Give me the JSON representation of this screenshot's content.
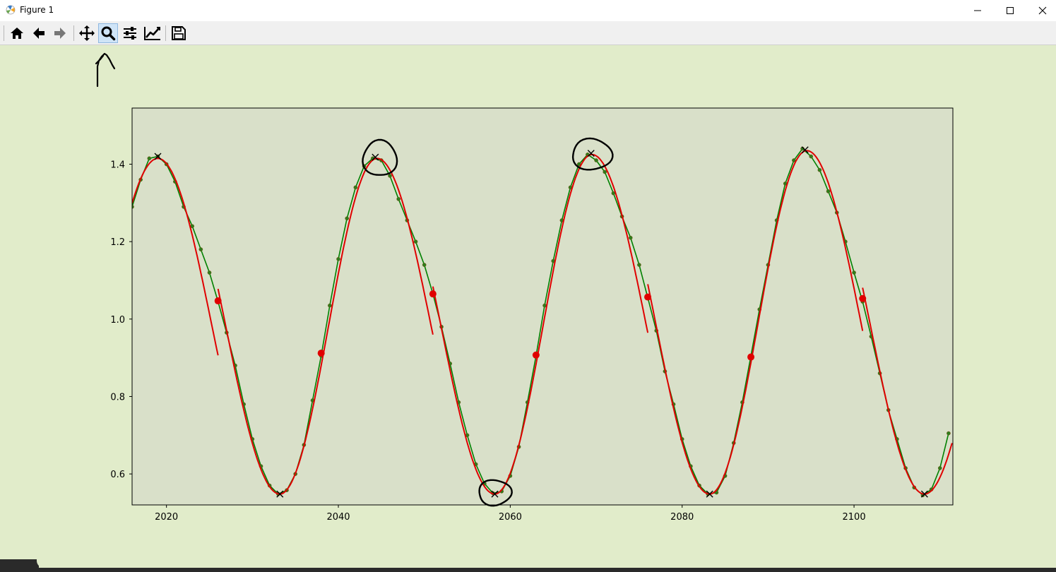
{
  "window": {
    "title": "Figure 1",
    "controls": [
      "minimize",
      "maximize",
      "close"
    ]
  },
  "toolbar": {
    "tools": [
      {
        "name": "home",
        "icon": "home-icon"
      },
      {
        "name": "back",
        "icon": "arrow-left-icon"
      },
      {
        "name": "forward",
        "icon": "arrow-right-icon"
      },
      {
        "name": "pan",
        "icon": "move-icon"
      },
      {
        "name": "zoom",
        "icon": "magnifier-icon",
        "active": true
      },
      {
        "name": "subplots",
        "icon": "sliders-icon"
      },
      {
        "name": "customize",
        "icon": "line-chart-icon"
      },
      {
        "name": "save",
        "icon": "floppy-icon"
      }
    ]
  },
  "colors": {
    "figure_bg": "#e1ecca",
    "axes_bg": "#d9e0c9",
    "red": "#e00000",
    "green": "#008000"
  },
  "chart_data": {
    "type": "line",
    "xlim": [
      2016,
      2111.5
    ],
    "ylim": [
      0.52,
      1.545
    ],
    "xticks": [
      2020,
      2040,
      2060,
      2080,
      2100
    ],
    "yticks": [
      0.6,
      0.8,
      1.0,
      1.2,
      1.4
    ],
    "grid": false,
    "series": [
      {
        "style": "green line with dark-green dot markers",
        "color": "#008000",
        "x": [
          2016,
          2017,
          2018,
          2019,
          2020,
          2021,
          2022,
          2023,
          2024,
          2025,
          2026,
          2027,
          2028,
          2029,
          2030,
          2031,
          2032,
          2033,
          2034,
          2035,
          2036,
          2037,
          2038,
          2039,
          2040,
          2041,
          2042,
          2043,
          2044,
          2045,
          2046,
          2047,
          2048,
          2049,
          2050,
          2051,
          2052,
          2053,
          2054,
          2055,
          2056,
          2057,
          2058,
          2059,
          2060,
          2061,
          2062,
          2063,
          2064,
          2065,
          2066,
          2067,
          2068,
          2069,
          2070,
          2071,
          2072,
          2073,
          2074,
          2075,
          2076,
          2077,
          2078,
          2079,
          2080,
          2081,
          2082,
          2083,
          2084,
          2085,
          2086,
          2087,
          2088,
          2089,
          2090,
          2091,
          2092,
          2093,
          2094,
          2095,
          2096,
          2097,
          2098,
          2099,
          2100,
          2101,
          2102,
          2103,
          2104,
          2105,
          2106,
          2107,
          2108,
          2109,
          2110,
          2111
        ],
        "y": [
          1.29,
          1.36,
          1.415,
          1.42,
          1.4,
          1.355,
          1.29,
          1.24,
          1.18,
          1.12,
          1.045,
          0.965,
          0.88,
          0.78,
          0.69,
          0.62,
          0.57,
          0.548,
          0.558,
          0.6,
          0.675,
          0.79,
          0.905,
          1.035,
          1.155,
          1.26,
          1.34,
          1.395,
          1.415,
          1.41,
          1.37,
          1.31,
          1.255,
          1.2,
          1.14,
          1.065,
          0.98,
          0.885,
          0.785,
          0.7,
          0.625,
          0.575,
          0.55,
          0.555,
          0.595,
          0.67,
          0.785,
          0.905,
          1.035,
          1.15,
          1.255,
          1.34,
          1.4,
          1.425,
          1.41,
          1.38,
          1.325,
          1.265,
          1.21,
          1.14,
          1.055,
          0.97,
          0.865,
          0.78,
          0.69,
          0.62,
          0.57,
          0.548,
          0.552,
          0.595,
          0.68,
          0.785,
          0.905,
          1.025,
          1.14,
          1.255,
          1.35,
          1.41,
          1.44,
          1.42,
          1.385,
          1.33,
          1.275,
          1.2,
          1.12,
          1.045,
          0.955,
          0.86,
          0.765,
          0.69,
          0.615,
          0.565,
          0.545,
          0.56,
          0.615,
          0.705
        ]
      },
      {
        "style": "red smooth fit curve",
        "color": "#e00000",
        "segments": [
          {
            "x_start": 2016,
            "x_end": 2026,
            "peak_x": 2019,
            "peak_y": 1.415
          },
          {
            "x_start": 2026,
            "x_end": 2051,
            "trough_x": 2033.2,
            "trough_y": 0.548,
            "peak_x": 2044.5,
            "peak_y": 1.415
          },
          {
            "x_start": 2051,
            "x_end": 2076,
            "trough_x": 2058.2,
            "trough_y": 0.548,
            "peak_x": 2069.5,
            "peak_y": 1.425
          },
          {
            "x_start": 2076,
            "x_end": 2101,
            "trough_x": 2083.2,
            "trough_y": 0.548,
            "peak_x": 2094.5,
            "peak_y": 1.435
          },
          {
            "x_start": 2101,
            "x_end": 2111.5,
            "trough_x": 2108.2,
            "trough_y": 0.548
          }
        ]
      },
      {
        "style": "large red dot markers",
        "color": "#e00000",
        "x": [
          2026,
          2038,
          2051,
          2063,
          2076,
          2088,
          2101
        ],
        "y": [
          1.047,
          0.912,
          1.065,
          0.907,
          1.057,
          0.902,
          1.053
        ]
      },
      {
        "style": "black x markers at detected extrema",
        "color": "#000000",
        "x": [
          2019,
          2033.2,
          2044.3,
          2058.2,
          2069.4,
          2083.2,
          2094.3,
          2108.2
        ],
        "y": [
          1.42,
          0.548,
          1.418,
          0.548,
          1.428,
          0.548,
          1.437,
          0.548
        ]
      }
    ],
    "annotations": [
      {
        "type": "hand-drawn arrow",
        "points_to": "zoom tool"
      },
      {
        "type": "hand-drawn circle",
        "around_x": 2044.5,
        "around_y": 1.415
      },
      {
        "type": "hand-drawn circle",
        "around_x": 2069.5,
        "around_y": 1.425
      },
      {
        "type": "hand-drawn circle",
        "around_x": 2058.2,
        "around_y": 0.55
      }
    ]
  }
}
